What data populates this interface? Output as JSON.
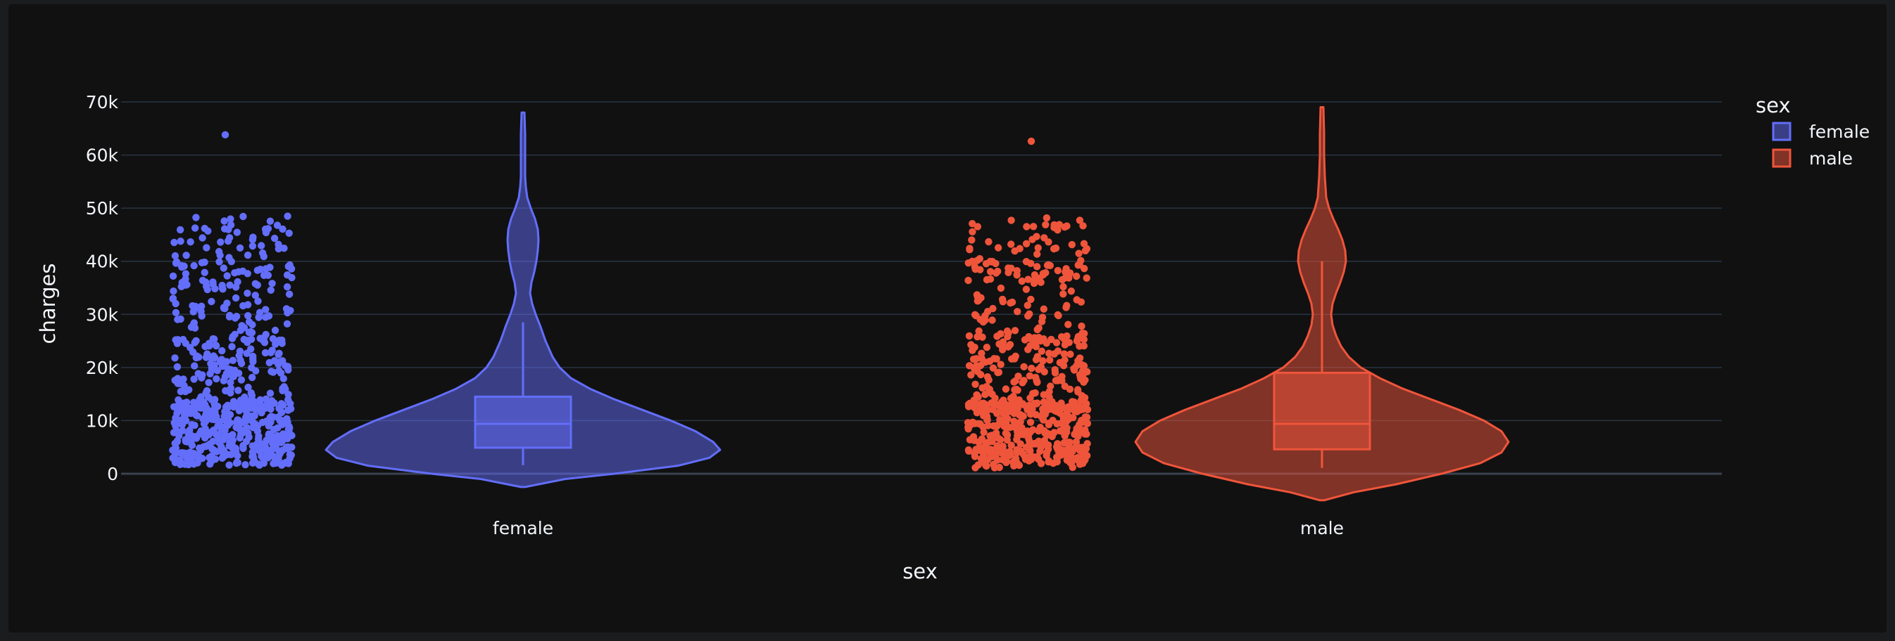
{
  "chart_data": {
    "type": "violin",
    "xlabel": "sex",
    "ylabel": "charges",
    "categories": [
      "female",
      "male"
    ],
    "ylim": [
      0,
      70000
    ],
    "y_ticks": [
      0,
      10000,
      20000,
      30000,
      40000,
      50000,
      60000,
      70000
    ],
    "y_tick_labels": [
      "0",
      "10k",
      "20k",
      "30k",
      "40k",
      "50k",
      "60k",
      "70k"
    ],
    "grid": true,
    "points": "all (jittered, shown left of each violin)",
    "legend": {
      "title": "sex",
      "position": "top-right",
      "entries": [
        "female",
        "male"
      ]
    },
    "series": [
      {
        "name": "female",
        "color": "#636efa",
        "box": {
          "q1": 4900,
          "median": 9400,
          "q3": 14500,
          "lower_fence": 1600,
          "upper_fence": 28500
        },
        "data_min": 1600,
        "data_max": 63800,
        "violin_extent": [
          -2500,
          68000
        ]
      },
      {
        "name": "male",
        "color": "#ef553b",
        "box": {
          "q1": 4600,
          "median": 9400,
          "q3": 19000,
          "lower_fence": 1100,
          "upper_fence": 40000
        },
        "data_min": 1100,
        "data_max": 62600,
        "violin_extent": [
          -5000,
          69000
        ]
      }
    ]
  },
  "colors": {
    "background": "#111111",
    "grid": "#283442",
    "zeroline": "#3a4150",
    "text": "#f2f5fa"
  }
}
